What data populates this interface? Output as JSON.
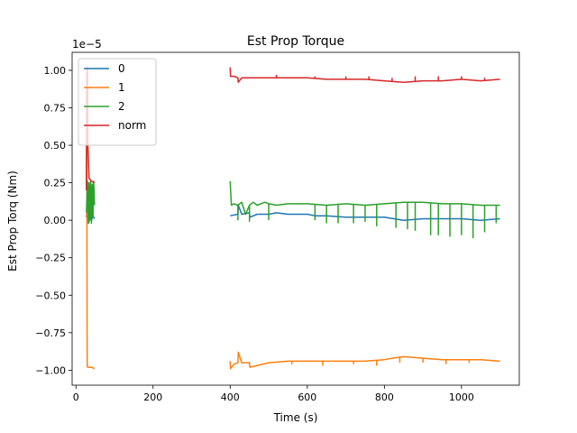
{
  "chart_data": {
    "type": "line",
    "title": "Est Prop Torque",
    "xlabel": "Time (s)",
    "ylabel": "Est Prop Torq (Nm)",
    "y_scale_label": "1e−5",
    "xlim": [
      -10,
      1150
    ],
    "ylim": [
      -1.1,
      1.12
    ],
    "xticks": [
      0,
      200,
      400,
      600,
      800,
      1000
    ],
    "xtick_labels": [
      "0",
      "200",
      "400",
      "600",
      "800",
      "1000"
    ],
    "yticks": [
      -1.0,
      -0.75,
      -0.5,
      -0.25,
      0.0,
      0.25,
      0.5,
      0.75,
      1.0
    ],
    "ytick_labels": [
      "−1.00",
      "−0.75",
      "−0.50",
      "−0.25",
      "0.00",
      "0.25",
      "0.50",
      "0.75",
      "1.00"
    ],
    "grid": false,
    "legend_position": "top-left",
    "series": [
      {
        "name": "0",
        "color": "#1f77b4",
        "segments": [
          {
            "x": [
              27,
              30,
              33,
              36,
              40,
              44,
              48
            ],
            "y": [
              0.02,
              0.1,
              -0.02,
              0.05,
              0.0,
              0.03,
              0.01
            ]
          },
          {
            "x": [
              400,
              420,
              421,
              430,
              450,
              451,
              470,
              500,
              520,
              550,
              600,
              620,
              650,
              700,
              750,
              800,
              850,
              900,
              950,
              1000,
              1050,
              1100
            ],
            "y": [
              0.03,
              0.04,
              0.1,
              0.04,
              0.05,
              0.02,
              0.04,
              0.04,
              0.05,
              0.04,
              0.04,
              0.03,
              0.03,
              0.02,
              0.02,
              0.02,
              0.0,
              0.01,
              0.01,
              0.01,
              0.0,
              0.01
            ]
          }
        ]
      },
      {
        "name": "1",
        "color": "#ff7f0e",
        "segments": [
          {
            "x": [
              27,
              28,
              29,
              30,
              31,
              40,
              48
            ],
            "y": [
              0.2,
              0.9,
              -0.97,
              -0.98,
              -0.98,
              -0.98,
              -0.99
            ]
          },
          {
            "x": [
              400,
              401,
              410,
              420,
              421,
              430,
              450,
              451,
              500,
              550,
              600,
              650,
              700,
              750,
              800,
              820,
              850,
              900,
              950,
              1000,
              1050,
              1100
            ],
            "y": [
              -0.94,
              -0.99,
              -0.96,
              -0.95,
              -0.88,
              -0.95,
              -0.95,
              -0.98,
              -0.95,
              -0.94,
              -0.94,
              -0.94,
              -0.94,
              -0.94,
              -0.93,
              -0.92,
              -0.91,
              -0.92,
              -0.93,
              -0.93,
              -0.93,
              -0.94
            ]
          }
        ]
      },
      {
        "name": "2",
        "color": "#2ca02c",
        "segments": [
          {
            "x": [
              27,
              30,
              32,
              34,
              36,
              38,
              40,
              42,
              44,
              46,
              48
            ],
            "y": [
              0.05,
              0.26,
              -0.02,
              0.25,
              0.0,
              0.26,
              -0.02,
              0.24,
              0.02,
              0.26,
              0.1
            ]
          },
          {
            "x": [
              400,
              403,
              410,
              420,
              430,
              440,
              450,
              460,
              470,
              490,
              500,
              520,
              550,
              600,
              650,
              700,
              750,
              800,
              850,
              900,
              950,
              1000,
              1050,
              1100
            ],
            "y": [
              0.26,
              0.1,
              0.11,
              0.1,
              0.12,
              0.04,
              0.1,
              0.12,
              0.1,
              0.12,
              0.11,
              0.1,
              0.11,
              0.11,
              0.1,
              0.11,
              0.1,
              0.11,
              0.12,
              0.12,
              0.11,
              0.11,
              0.1,
              0.1
            ]
          }
        ]
      },
      {
        "name": "norm",
        "color": "#d62728",
        "segments": [
          {
            "x": [
              27,
              28,
              29,
              30,
              31,
              34,
              40,
              48
            ],
            "y": [
              0.2,
              0.95,
              1.02,
              0.99,
              0.5,
              0.28,
              0.26,
              0.25
            ]
          },
          {
            "x": [
              400,
              401,
              410,
              420,
              421,
              430,
              450,
              500,
              550,
              600,
              650,
              700,
              750,
              800,
              850,
              900,
              950,
              1000,
              1050,
              1100
            ],
            "y": [
              1.02,
              0.96,
              0.96,
              0.95,
              0.92,
              0.95,
              0.95,
              0.95,
              0.95,
              0.95,
              0.94,
              0.94,
              0.94,
              0.93,
              0.92,
              0.93,
              0.93,
              0.94,
              0.93,
              0.94
            ]
          }
        ]
      }
    ],
    "spikes": [
      {
        "series": "2",
        "x": [
          420,
          450,
          500,
          620,
          650,
          680,
          720,
          750,
          780,
          830,
          860,
          880,
          920,
          940,
          970,
          1000,
          1030,
          1060,
          1090
        ],
        "to_y": [
          0.0,
          -0.01,
          0.0,
          0.0,
          -0.02,
          -0.02,
          -0.02,
          -0.01,
          -0.04,
          -0.05,
          -0.06,
          -0.07,
          -0.1,
          -0.1,
          -0.11,
          -0.1,
          -0.12,
          -0.08,
          -0.02
        ]
      },
      {
        "series": "norm",
        "x": [
          520,
          620,
          700,
          760,
          820,
          880,
          940,
          1000,
          1060
        ],
        "to_y": [
          0.97,
          0.96,
          0.96,
          0.96,
          0.95,
          0.96,
          0.96,
          0.96,
          0.95
        ]
      },
      {
        "series": "1",
        "x": [
          470,
          560,
          640,
          720,
          780,
          840,
          900,
          960,
          1020
        ],
        "to_y": [
          -0.97,
          -0.96,
          -0.97,
          -0.96,
          -0.97,
          -0.95,
          -0.95,
          -0.96,
          -0.95
        ]
      }
    ]
  }
}
